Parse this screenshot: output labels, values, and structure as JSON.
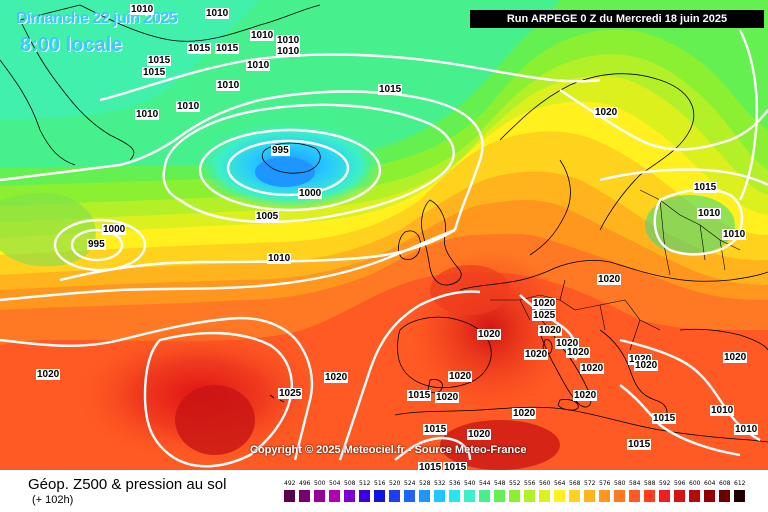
{
  "header": {
    "date": "Dimanche 22 juin 2025",
    "time": "8:00 locale",
    "run": "Run ARPEGE 0 Z du Mercredi 18 juin 2025"
  },
  "copyright": "Copyright © 2025 Meteociel.fr - Source Meteo-France",
  "footer": {
    "title": "Géop. Z500 & pression au sol",
    "subtitle": "(+ 102h)"
  },
  "legend": {
    "ticks": [
      "492",
      "496",
      "500",
      "504",
      "508",
      "512",
      "516",
      "520",
      "524",
      "528",
      "532",
      "536",
      "540",
      "544",
      "548",
      "552",
      "556",
      "560",
      "564",
      "568",
      "572",
      "576",
      "580",
      "584",
      "588",
      "592",
      "596",
      "600",
      "604",
      "608",
      "612"
    ],
    "colors": [
      "#5a0050",
      "#78006e",
      "#960096",
      "#b400b4",
      "#7d00d2",
      "#3c00dc",
      "#1414dc",
      "#1e3cf0",
      "#1e64ff",
      "#1e96ff",
      "#1ec8ff",
      "#28e6f0",
      "#3cf0c8",
      "#46f08c",
      "#64f050",
      "#8cf032",
      "#b4f028",
      "#dcf01e",
      "#fff01e",
      "#ffd21e",
      "#ffb41e",
      "#ff961e",
      "#ff7823",
      "#ff5a23",
      "#ff3c1e",
      "#f01e1e",
      "#d21414",
      "#b40a0a",
      "#960000",
      "#6e0000",
      "#1e0000"
    ]
  },
  "isobars": [
    {
      "label": "1010",
      "color": "#ffffff"
    },
    {
      "label": "1015",
      "color": "#ffffff"
    },
    {
      "label": "1020",
      "color": "#ffffff"
    },
    {
      "label": "1025",
      "color": "#ffffff"
    },
    {
      "label": "1005",
      "color": "#ffffff"
    },
    {
      "label": "1000",
      "color": "#ffffff"
    },
    {
      "label": "995",
      "color": "#ffffff"
    }
  ],
  "map_labels": [
    "1010",
    "1010",
    "1010",
    "1015",
    "1015",
    "1015",
    "1010",
    "1010",
    "1015",
    "1010",
    "1010",
    "1010",
    "1010",
    "995",
    "1000",
    "1005",
    "1000",
    "995",
    "1010",
    "1015",
    "1020",
    "1015",
    "1010",
    "1010",
    "1020",
    "1020",
    "1025",
    "1020",
    "1020",
    "1020",
    "1020",
    "1020",
    "1020",
    "1020",
    "1020",
    "1015",
    "1020",
    "1015",
    "1020",
    "1020",
    "1020",
    "1020",
    "1020",
    "1025",
    "1015",
    "1020",
    "1015",
    "1010",
    "1015",
    "1010",
    "1015",
    "1020"
  ],
  "colors": {
    "isobar": "#ffffff",
    "coast": "#000000",
    "border": "#000000"
  }
}
